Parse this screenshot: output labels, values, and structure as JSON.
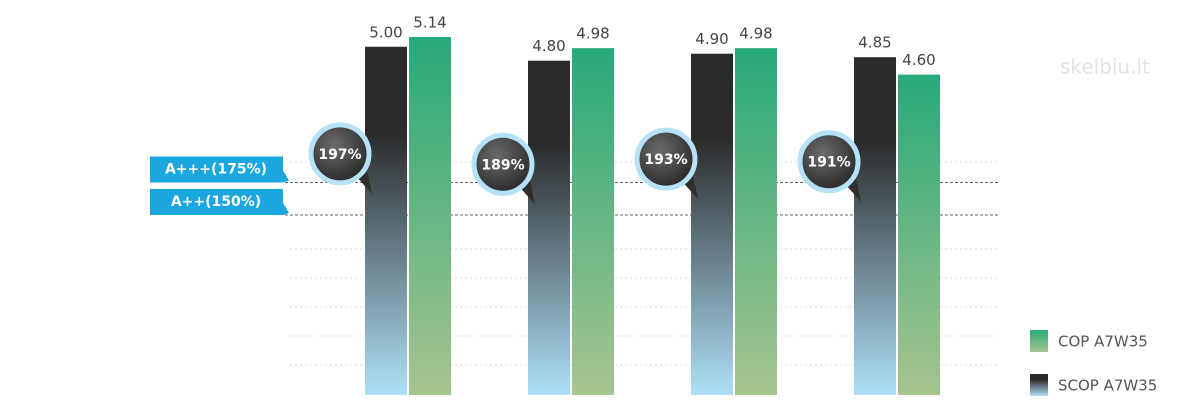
{
  "chart_data": {
    "type": "bar",
    "series": [
      {
        "name": "SCOP A7W35",
        "gradient": [
          "#2b2b2b",
          "#aee0f7"
        ],
        "values": [
          5.0,
          4.8,
          4.9,
          4.85
        ],
        "value_labels": [
          "5.00",
          "4.80",
          "4.90",
          "4.85"
        ]
      },
      {
        "name": "COP A7W35",
        "gradient": [
          "#27a97a",
          "#a7c48e"
        ],
        "values": [
          5.14,
          4.98,
          4.98,
          4.6
        ],
        "value_labels": [
          "5.14",
          "4.98",
          "4.98",
          "4.60"
        ]
      }
    ],
    "efficiency": {
      "values": [
        197,
        189,
        193,
        191
      ],
      "value_labels": [
        "197%",
        "189%",
        "193%",
        "191%"
      ]
    },
    "reference_lines": [
      {
        "value": 175,
        "label": "A+++(175%)"
      },
      {
        "value": 150,
        "label": "A++(150%)"
      }
    ],
    "legend": "bottom-right",
    "watermark": "skelbiu.lt"
  }
}
